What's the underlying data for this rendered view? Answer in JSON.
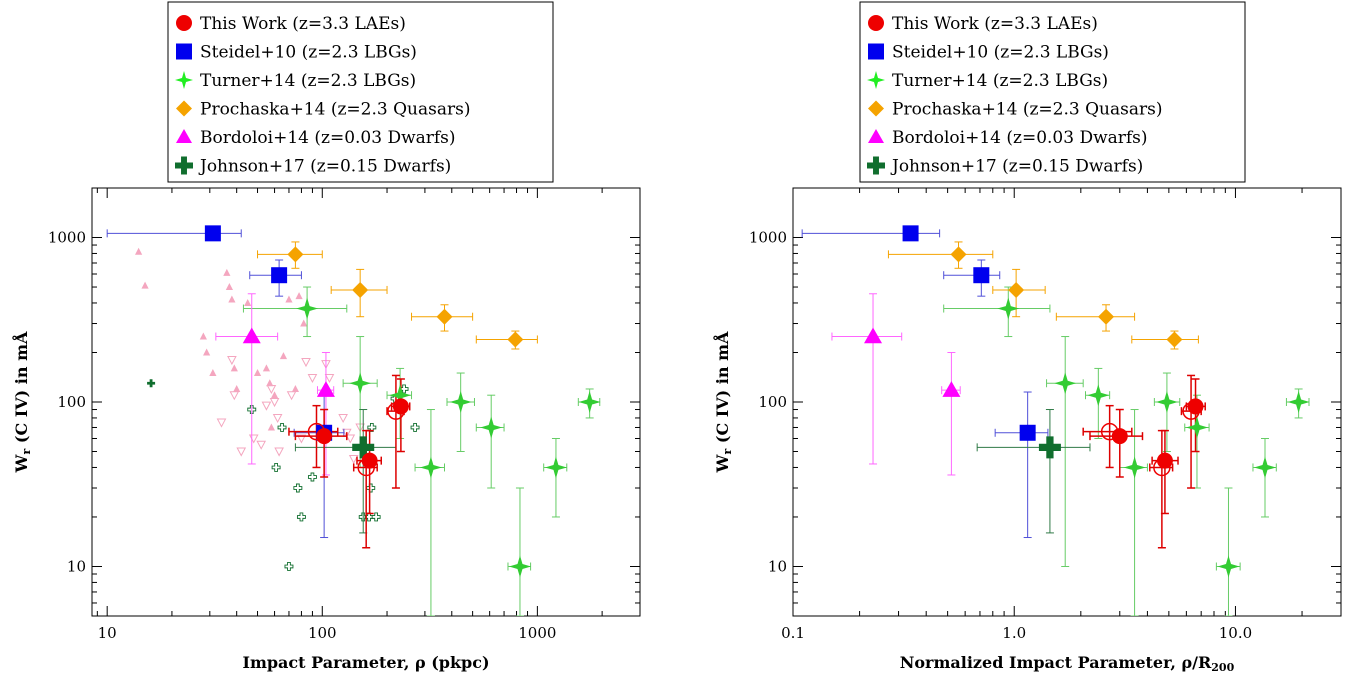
{
  "chart_data": [
    {
      "type": "scatter",
      "xlabel": "Impact Parameter, ρ (pkpc)",
      "ylabel_main": "W",
      "ylabel_sub": "r",
      "ylabel_rest": " (C IV) in mÅ",
      "xscale": "log",
      "yscale": "log",
      "xlim": [
        8.5,
        3000
      ],
      "ylim": [
        5,
        2000
      ],
      "xticks": [
        {
          "v": 10,
          "label": "10"
        },
        {
          "v": 100,
          "label": "100"
        },
        {
          "v": 1000,
          "label": "1000"
        }
      ],
      "yticks": [
        {
          "v": 10,
          "label": "10"
        },
        {
          "v": 100,
          "label": "100"
        },
        {
          "v": 1000,
          "label": "1000"
        }
      ],
      "legend": [
        {
          "label": "This Work (z=3.3 LAEs)",
          "marker": "circle",
          "color": "#ee0000"
        },
        {
          "label": "Steidel+10 (z=2.3 LBGs)",
          "marker": "square",
          "color": "#0000ee"
        },
        {
          "label": "Turner+14 (z=2.3 LBGs)",
          "marker": "star",
          "color": "#22ee22"
        },
        {
          "label": "Prochaska+14 (z=2.3 Quasars)",
          "marker": "diamond",
          "color": "#f5a300"
        },
        {
          "label": "Bordoloi+14 (z=0.03 Dwarfs)",
          "marker": "triangle",
          "color": "#ff00ff"
        },
        {
          "label": "Johnson+17 (z=0.15 Dwarfs)",
          "marker": "cross",
          "color": "#106e2e"
        }
      ],
      "series": [
        {
          "name": "Steidel+10 (z=2.3 LBGs)",
          "marker": "square",
          "color": "#0000ee",
          "errcolor": "#5050d8",
          "points": [
            {
              "x": 31,
              "y": 1060,
              "xlo": 10,
              "xhi": 42,
              "ylo": 980,
              "yhi": 1140
            },
            {
              "x": 63,
              "y": 590,
              "xlo": 46,
              "xhi": 80,
              "ylo": 440,
              "yhi": 730
            },
            {
              "x": 102,
              "y": 65,
              "xlo": 74,
              "xhi": 126,
              "ylo": 15,
              "yhi": 115
            }
          ]
        },
        {
          "name": "Turner+14 (z=2.3 LBGs)",
          "marker": "star",
          "color": "#33cc33",
          "errcolor": "#66cc66",
          "points": [
            {
              "x": 85,
              "y": 370,
              "xlo": 43,
              "xhi": 130,
              "ylo": 250,
              "yhi": 500
            },
            {
              "x": 150,
              "y": 130,
              "xlo": 125,
              "xhi": 180,
              "ylo": 40,
              "yhi": 250
            },
            {
              "x": 230,
              "y": 110,
              "xlo": 200,
              "xhi": 260,
              "ylo": 60,
              "yhi": 160
            },
            {
              "x": 320,
              "y": 40,
              "xlo": 270,
              "xhi": 370,
              "ylo": 5,
              "yhi": 90
            },
            {
              "x": 440,
              "y": 100,
              "xlo": 380,
              "xhi": 510,
              "ylo": 50,
              "yhi": 150
            },
            {
              "x": 610,
              "y": 70,
              "xlo": 520,
              "xhi": 700,
              "ylo": 30,
              "yhi": 110
            },
            {
              "x": 830,
              "y": 10,
              "xlo": 730,
              "xhi": 930,
              "ylo": 5,
              "yhi": 30
            },
            {
              "x": 1220,
              "y": 40,
              "xlo": 1070,
              "xhi": 1370,
              "ylo": 20,
              "yhi": 60
            },
            {
              "x": 1750,
              "y": 100,
              "xlo": 1550,
              "xhi": 1950,
              "ylo": 80,
              "yhi": 120
            }
          ]
        },
        {
          "name": "Prochaska+14 (z=2.3 Quasars)",
          "marker": "diamond",
          "color": "#f5a300",
          "errcolor": "#f5a300",
          "points": [
            {
              "x": 75,
              "y": 790,
              "xlo": 50,
              "xhi": 100,
              "ylo": 650,
              "yhi": 940
            },
            {
              "x": 150,
              "y": 480,
              "xlo": 110,
              "xhi": 200,
              "ylo": 330,
              "yhi": 640
            },
            {
              "x": 370,
              "y": 330,
              "xlo": 260,
              "xhi": 500,
              "ylo": 270,
              "yhi": 390
            },
            {
              "x": 790,
              "y": 240,
              "xlo": 520,
              "xhi": 1000,
              "ylo": 210,
              "yhi": 270
            }
          ]
        },
        {
          "name": "Bordoloi+14 (z=0.03 Dwarfs)",
          "marker": "triangle",
          "color": "#ff00ff",
          "errcolor": "#ff66ff",
          "points": [
            {
              "x": 47,
              "y": 250,
              "xlo": 32,
              "xhi": 62,
              "ylo": 42,
              "yhi": 455
            },
            {
              "x": 104,
              "y": 118,
              "xlo": 95,
              "xhi": 113,
              "ylo": 36,
              "yhi": 200
            }
          ]
        },
        {
          "name": "Johnson+17 (z=0.15 Dwarfs)",
          "marker": "cross",
          "color": "#106e2e",
          "errcolor": "#2f7a46",
          "points": [
            {
              "x": 155,
              "y": 53,
              "xlo": 75,
              "xhi": 220,
              "ylo": 16,
              "yhi": 90
            }
          ]
        },
        {
          "name": "This Work (z=3.3 LAEs)",
          "marker": "circle",
          "color": "#ee0000",
          "errcolor": "#dd0000",
          "points": [
            {
              "x": 102,
              "y": 62,
              "xlo": 75,
              "xhi": 130,
              "ylo": 35,
              "yhi": 90,
              "open": false
            },
            {
              "x": 94,
              "y": 66,
              "xlo": 70,
              "xhi": 118,
              "ylo": 40,
              "yhi": 95,
              "open": true
            },
            {
              "x": 166,
              "y": 44,
              "xlo": 145,
              "xhi": 188,
              "ylo": 21,
              "yhi": 67,
              "open": false
            },
            {
              "x": 160,
              "y": 40,
              "xlo": 140,
              "xhi": 180,
              "ylo": 13,
              "yhi": 67,
              "open": true
            },
            {
              "x": 232,
              "y": 94,
              "xlo": 210,
              "xhi": 255,
              "ylo": 50,
              "yhi": 138,
              "open": false
            },
            {
              "x": 220,
              "y": 88,
              "xlo": 200,
              "xhi": 240,
              "ylo": 30,
              "yhi": 145,
              "open": true
            }
          ]
        }
      ],
      "background_points": [
        {
          "x": 14,
          "y": 820,
          "m": "tri"
        },
        {
          "x": 15,
          "y": 510,
          "m": "tri"
        },
        {
          "x": 28,
          "y": 250,
          "m": "tri"
        },
        {
          "x": 29,
          "y": 200,
          "m": "tri"
        },
        {
          "x": 31,
          "y": 150,
          "m": "tri"
        },
        {
          "x": 36,
          "y": 610,
          "m": "tri"
        },
        {
          "x": 37,
          "y": 500,
          "m": "tri"
        },
        {
          "x": 38,
          "y": 420,
          "m": "tri"
        },
        {
          "x": 39,
          "y": 160,
          "m": "tri"
        },
        {
          "x": 40,
          "y": 120,
          "m": "tri"
        },
        {
          "x": 45,
          "y": 400,
          "m": "tri"
        },
        {
          "x": 50,
          "y": 150,
          "m": "tri"
        },
        {
          "x": 55,
          "y": 160,
          "m": "tri"
        },
        {
          "x": 57,
          "y": 130,
          "m": "tri"
        },
        {
          "x": 58,
          "y": 70,
          "m": "tri"
        },
        {
          "x": 60,
          "y": 110,
          "m": "tri"
        },
        {
          "x": 66,
          "y": 190,
          "m": "tri"
        },
        {
          "x": 70,
          "y": 420,
          "m": "tri"
        },
        {
          "x": 75,
          "y": 120,
          "m": "tri"
        },
        {
          "x": 78,
          "y": 440,
          "m": "tri"
        },
        {
          "x": 82,
          "y": 300,
          "m": "tri"
        },
        {
          "x": 34,
          "y": 75,
          "m": "itri"
        },
        {
          "x": 38,
          "y": 180,
          "m": "itri"
        },
        {
          "x": 39,
          "y": 110,
          "m": "itri"
        },
        {
          "x": 42,
          "y": 50,
          "m": "itri"
        },
        {
          "x": 48,
          "y": 60,
          "m": "itri"
        },
        {
          "x": 52,
          "y": 55,
          "m": "itri"
        },
        {
          "x": 55,
          "y": 95,
          "m": "itri"
        },
        {
          "x": 58,
          "y": 120,
          "m": "itri"
        },
        {
          "x": 60,
          "y": 100,
          "m": "itri"
        },
        {
          "x": 62,
          "y": 80,
          "m": "itri"
        },
        {
          "x": 63,
          "y": 50,
          "m": "itri"
        },
        {
          "x": 72,
          "y": 110,
          "m": "itri"
        },
        {
          "x": 80,
          "y": 60,
          "m": "itri"
        },
        {
          "x": 84,
          "y": 175,
          "m": "itri"
        },
        {
          "x": 90,
          "y": 140,
          "m": "itri"
        },
        {
          "x": 104,
          "y": 170,
          "m": "itri"
        },
        {
          "x": 108,
          "y": 140,
          "m": "itri"
        },
        {
          "x": 125,
          "y": 80,
          "m": "itri"
        },
        {
          "x": 130,
          "y": 65,
          "m": "itri"
        },
        {
          "x": 135,
          "y": 60,
          "m": "itri"
        },
        {
          "x": 140,
          "y": 45,
          "m": "itri"
        },
        {
          "x": 150,
          "y": 70,
          "m": "itri"
        },
        {
          "x": 16,
          "y": 130,
          "m": "cross_solid"
        },
        {
          "x": 47,
          "y": 90,
          "m": "cross_open"
        },
        {
          "x": 61,
          "y": 40,
          "m": "cross_open"
        },
        {
          "x": 65,
          "y": 70,
          "m": "cross_open"
        },
        {
          "x": 70,
          "y": 10,
          "m": "cross_open"
        },
        {
          "x": 77,
          "y": 30,
          "m": "cross_open"
        },
        {
          "x": 80,
          "y": 20,
          "m": "cross_open"
        },
        {
          "x": 90,
          "y": 35,
          "m": "cross_open"
        },
        {
          "x": 155,
          "y": 20,
          "m": "cross_open"
        },
        {
          "x": 165,
          "y": 20,
          "m": "cross_open"
        },
        {
          "x": 168,
          "y": 30,
          "m": "cross_open"
        },
        {
          "x": 170,
          "y": 70,
          "m": "cross_open"
        },
        {
          "x": 178,
          "y": 20,
          "m": "cross_open"
        },
        {
          "x": 218,
          "y": 105,
          "m": "cross_open"
        },
        {
          "x": 240,
          "y": 120,
          "m": "cross_open"
        },
        {
          "x": 270,
          "y": 70,
          "m": "cross_open"
        }
      ]
    },
    {
      "type": "scatter",
      "xlabel": "Normalized Impact Parameter, ρ/R",
      "xlabel_sub": "200",
      "ylabel_main": "W",
      "ylabel_sub": "r",
      "ylabel_rest": " (C IV) in mÅ",
      "xscale": "log",
      "yscale": "log",
      "xlim": [
        0.1,
        30
      ],
      "ylim": [
        5,
        2000
      ],
      "xticks": [
        {
          "v": 0.1,
          "label": "0.1"
        },
        {
          "v": 1,
          "label": "1.0"
        },
        {
          "v": 10,
          "label": "10.0"
        }
      ],
      "yticks": [
        {
          "v": 10,
          "label": "10"
        },
        {
          "v": 100,
          "label": "100"
        },
        {
          "v": 1000,
          "label": "1000"
        }
      ],
      "legend": [
        {
          "label": "This Work (z=3.3 LAEs)",
          "marker": "circle",
          "color": "#ee0000"
        },
        {
          "label": "Steidel+10 (z=2.3 LBGs)",
          "marker": "square",
          "color": "#0000ee"
        },
        {
          "label": "Turner+14 (z=2.3 LBGs)",
          "marker": "star",
          "color": "#22ee22"
        },
        {
          "label": "Prochaska+14 (z=2.3 Quasars)",
          "marker": "diamond",
          "color": "#f5a300"
        },
        {
          "label": "Bordoloi+14 (z=0.03 Dwarfs)",
          "marker": "triangle",
          "color": "#ff00ff"
        },
        {
          "label": "Johnson+17 (z=0.15 Dwarfs)",
          "marker": "cross",
          "color": "#106e2e"
        }
      ],
      "series": [
        {
          "name": "Steidel+10 (z=2.3 LBGs)",
          "marker": "square",
          "color": "#0000ee",
          "errcolor": "#5050d8",
          "points": [
            {
              "x": 0.34,
              "y": 1060,
              "xlo": 0.11,
              "xhi": 0.46,
              "ylo": 980,
              "yhi": 1140
            },
            {
              "x": 0.71,
              "y": 590,
              "xlo": 0.48,
              "xhi": 0.86,
              "ylo": 440,
              "yhi": 730
            },
            {
              "x": 1.15,
              "y": 65,
              "xlo": 0.82,
              "xhi": 1.42,
              "ylo": 15,
              "yhi": 115
            }
          ]
        },
        {
          "name": "Turner+14 (z=2.3 LBGs)",
          "marker": "star",
          "color": "#33cc33",
          "errcolor": "#66cc66",
          "points": [
            {
              "x": 0.94,
              "y": 370,
              "xlo": 0.48,
              "xhi": 1.45,
              "ylo": 250,
              "yhi": 500
            },
            {
              "x": 1.7,
              "y": 130,
              "xlo": 1.4,
              "xhi": 2.05,
              "ylo": 10,
              "yhi": 250
            },
            {
              "x": 2.4,
              "y": 110,
              "xlo": 2.1,
              "xhi": 2.7,
              "ylo": 60,
              "yhi": 160
            },
            {
              "x": 3.5,
              "y": 40,
              "xlo": 3.0,
              "xhi": 4.0,
              "ylo": 5,
              "yhi": 90
            },
            {
              "x": 4.9,
              "y": 100,
              "xlo": 4.3,
              "xhi": 5.6,
              "ylo": 50,
              "yhi": 150
            },
            {
              "x": 6.7,
              "y": 70,
              "xlo": 5.9,
              "xhi": 7.6,
              "ylo": 30,
              "yhi": 110
            },
            {
              "x": 9.3,
              "y": 10,
              "xlo": 8.2,
              "xhi": 10.5,
              "ylo": 5,
              "yhi": 30
            },
            {
              "x": 13.6,
              "y": 40,
              "xlo": 12,
              "xhi": 15.3,
              "ylo": 20,
              "yhi": 60
            },
            {
              "x": 19.3,
              "y": 100,
              "xlo": 17,
              "xhi": 21.5,
              "ylo": 80,
              "yhi": 120
            }
          ]
        },
        {
          "name": "Prochaska+14 (z=2.3 Quasars)",
          "marker": "diamond",
          "color": "#f5a300",
          "errcolor": "#f5a300",
          "points": [
            {
              "x": 0.56,
              "y": 790,
              "xlo": 0.27,
              "xhi": 0.8,
              "ylo": 650,
              "yhi": 940
            },
            {
              "x": 1.02,
              "y": 480,
              "xlo": 0.8,
              "xhi": 1.38,
              "ylo": 330,
              "yhi": 640
            },
            {
              "x": 2.6,
              "y": 330,
              "xlo": 1.55,
              "xhi": 3.5,
              "ylo": 270,
              "yhi": 390
            },
            {
              "x": 5.3,
              "y": 240,
              "xlo": 3.4,
              "xhi": 6.8,
              "ylo": 210,
              "yhi": 270
            }
          ]
        },
        {
          "name": "Bordoloi+14 (z=0.03 Dwarfs)",
          "marker": "triangle",
          "color": "#ff00ff",
          "errcolor": "#ff66ff",
          "points": [
            {
              "x": 0.23,
              "y": 250,
              "xlo": 0.15,
              "xhi": 0.31,
              "ylo": 42,
              "yhi": 455
            },
            {
              "x": 0.52,
              "y": 118,
              "xlo": 0.47,
              "xhi": 0.57,
              "ylo": 36,
              "yhi": 200
            }
          ]
        },
        {
          "name": "Johnson+17 (z=0.15 Dwarfs)",
          "marker": "cross",
          "color": "#106e2e",
          "errcolor": "#2f7a46",
          "points": [
            {
              "x": 1.45,
              "y": 53,
              "xlo": 0.68,
              "xhi": 2.2,
              "ylo": 16,
              "yhi": 90
            }
          ]
        },
        {
          "name": "This Work (z=3.3 LAEs)",
          "marker": "circle",
          "color": "#ee0000",
          "errcolor": "#dd0000",
          "points": [
            {
              "x": 3.0,
              "y": 62,
              "xlo": 2.2,
              "xhi": 3.8,
              "ylo": 35,
              "yhi": 90,
              "open": false
            },
            {
              "x": 2.7,
              "y": 66,
              "xlo": 2.05,
              "xhi": 3.4,
              "ylo": 40,
              "yhi": 95,
              "open": true
            },
            {
              "x": 4.8,
              "y": 44,
              "xlo": 4.2,
              "xhi": 5.5,
              "ylo": 21,
              "yhi": 67,
              "open": false
            },
            {
              "x": 4.65,
              "y": 40,
              "xlo": 4.1,
              "xhi": 5.2,
              "ylo": 13,
              "yhi": 67,
              "open": true
            },
            {
              "x": 6.6,
              "y": 94,
              "xlo": 6.0,
              "xhi": 7.3,
              "ylo": 50,
              "yhi": 138,
              "open": false
            },
            {
              "x": 6.3,
              "y": 88,
              "xlo": 5.7,
              "xhi": 7.0,
              "ylo": 30,
              "yhi": 145,
              "open": true
            }
          ]
        }
      ],
      "background_points": []
    }
  ]
}
